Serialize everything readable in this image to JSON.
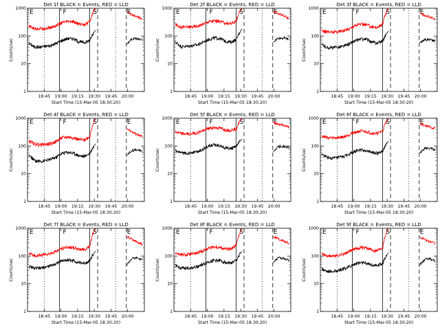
{
  "chart_data": [
    {
      "type": "line",
      "title": "Det 1f BLACK = Events, RED = LLD",
      "xlabel": "Start Time (15-Mar-05 18:30:20)",
      "ylabel": "Counts/sec",
      "yscale": "log",
      "ylim": [
        1,
        1000
      ],
      "ytick_labels": [
        "1",
        "10",
        "100",
        "1000"
      ],
      "xtick_labels": [
        "18:45",
        "19:00",
        "19:15",
        "19:30",
        "19:45",
        "20:00"
      ],
      "markers": [
        "E",
        "F",
        "S",
        "E"
      ],
      "series": [
        {
          "color": "#000000",
          "base": [
            55,
            40,
            40,
            43,
            45,
            55,
            70,
            82,
            80,
            62,
            58,
            70,
            160
          ]
        },
        {
          "color": "#ff0000",
          "base": [
            220,
            185,
            185,
            190,
            200,
            240,
            300,
            330,
            320,
            270,
            260,
            330,
            1000
          ]
        }
      ],
      "after": {
        "black": [
          50,
          80,
          80,
          70
        ],
        "red": [
          700,
          600,
          500,
          400
        ]
      }
    },
    {
      "type": "line",
      "title": "Det 2f BLACK = Events, RED = LLD",
      "xlabel": "Start Time (15-Mar-05 18:30:20)",
      "ylabel": "Counts/sec",
      "yscale": "log",
      "ylim": [
        1,
        1000
      ],
      "ytick_labels": [
        "1",
        "10",
        "100",
        "1000"
      ],
      "xtick_labels": [
        "18:45",
        "19:00",
        "19:15",
        "19:30",
        "19:45",
        "20:00"
      ],
      "markers": [
        "E",
        "F",
        "S",
        "E"
      ],
      "series": [
        {
          "color": "#000000",
          "base": [
            60,
            42,
            42,
            45,
            48,
            60,
            75,
            85,
            82,
            65,
            60,
            75,
            180
          ]
        },
        {
          "color": "#ff0000",
          "base": [
            260,
            210,
            210,
            215,
            225,
            270,
            330,
            350,
            340,
            290,
            280,
            350,
            1000
          ]
        }
      ],
      "after": {
        "black": [
          60,
          85,
          85,
          75
        ],
        "red": [
          750,
          650,
          550,
          430
        ]
      }
    },
    {
      "type": "line",
      "title": "Det 3f BLACK = Events, RED = LLD",
      "xlabel": "Start Time (15-Mar-05 18:30:20)",
      "ylabel": "Counts/sec",
      "yscale": "log",
      "ylim": [
        1,
        1000
      ],
      "ytick_labels": [
        "1",
        "10",
        "100",
        "1000"
      ],
      "xtick_labels": [
        "18:45",
        "19:00",
        "19:15",
        "19:30",
        "19:45",
        "20:00"
      ],
      "markers": [
        "E",
        "F",
        "S",
        "E"
      ],
      "series": [
        {
          "color": "#000000",
          "base": [
            48,
            38,
            38,
            40,
            43,
            52,
            66,
            78,
            76,
            60,
            55,
            68,
            150
          ]
        },
        {
          "color": "#ff0000",
          "base": [
            160,
            140,
            140,
            145,
            155,
            185,
            240,
            270,
            260,
            215,
            205,
            270,
            1000
          ]
        }
      ],
      "after": {
        "black": [
          55,
          75,
          75,
          65
        ],
        "red": [
          650,
          560,
          480,
          380
        ]
      }
    },
    {
      "type": "line",
      "title": "Det 4f BLACK = Events, RED = LLD",
      "xlabel": "Start Time (15-Mar-05 18:30:20)",
      "ylabel": "Counts/sec",
      "yscale": "log",
      "ylim": [
        1,
        1000
      ],
      "ytick_labels": [
        "1",
        "10",
        "100",
        "1000"
      ],
      "xtick_labels": [
        "18:45",
        "19:00",
        "19:15",
        "19:30",
        "19:45",
        "20:00"
      ],
      "markers": [
        "E",
        "F",
        "S",
        "E"
      ],
      "series": [
        {
          "color": "#000000",
          "base": [
            45,
            30,
            28,
            30,
            33,
            40,
            55,
            60,
            55,
            45,
            42,
            55,
            120
          ]
        },
        {
          "color": "#ff0000",
          "base": [
            150,
            120,
            110,
            115,
            120,
            150,
            200,
            210,
            200,
            170,
            165,
            220,
            1000
          ]
        }
      ],
      "after": {
        "black": [
          45,
          70,
          75,
          60
        ],
        "red": [
          400,
          320,
          260,
          220
        ]
      }
    },
    {
      "type": "line",
      "title": "Det 5f BLACK = Events, RED = LLD",
      "xlabel": "Start Time (15-Mar-05 18:30:20)",
      "ylabel": "Counts/sec",
      "yscale": "log",
      "ylim": [
        1,
        1000
      ],
      "ytick_labels": [
        "1",
        "10",
        "100",
        "1000"
      ],
      "xtick_labels": [
        "18:45",
        "19:00",
        "19:15",
        "19:30",
        "19:45",
        "20:00"
      ],
      "markers": [
        "E",
        "F",
        "S",
        "E"
      ],
      "series": [
        {
          "color": "#000000",
          "base": [
            65,
            55,
            55,
            58,
            62,
            78,
            100,
            110,
            105,
            85,
            80,
            95,
            180
          ]
        },
        {
          "color": "#ff0000",
          "base": [
            330,
            280,
            270,
            280,
            300,
            360,
            430,
            460,
            440,
            380,
            370,
            440,
            1000
          ]
        }
      ],
      "after": {
        "black": [
          60,
          95,
          100,
          85
        ],
        "red": [
          700,
          620,
          550,
          480
        ]
      }
    },
    {
      "type": "line",
      "title": "Det 6f BLACK = Events, RED = LLD",
      "xlabel": "Start Time (15-Mar-05 18:30:20)",
      "ylabel": "Counts/sec",
      "yscale": "log",
      "ylim": [
        1,
        1000
      ],
      "ytick_labels": [
        "1",
        "10",
        "100",
        "1000"
      ],
      "xtick_labels": [
        "18:45",
        "19:00",
        "19:15",
        "19:30",
        "19:45",
        "20:00"
      ],
      "markers": [
        "E",
        "F",
        "S",
        "E"
      ],
      "series": [
        {
          "color": "#000000",
          "base": [
            50,
            38,
            36,
            38,
            42,
            50,
            65,
            72,
            68,
            58,
            55,
            68,
            150
          ]
        },
        {
          "color": "#ff0000",
          "base": [
            230,
            200,
            195,
            200,
            215,
            260,
            320,
            340,
            330,
            290,
            280,
            350,
            1000
          ]
        }
      ],
      "after": {
        "black": [
          55,
          80,
          85,
          70
        ],
        "red": [
          650,
          560,
          480,
          420
        ]
      }
    },
    {
      "type": "line",
      "title": "Det 7f BLACK = Events, RED = LLD",
      "xlabel": "Start Time (15-Mar-05 18:30:20)",
      "ylabel": "Counts/sec",
      "yscale": "log",
      "ylim": [
        1,
        1000
      ],
      "ytick_labels": [
        "1",
        "10",
        "100",
        "1000"
      ],
      "xtick_labels": [
        "18:45",
        "19:00",
        "19:15",
        "19:30",
        "19:45",
        "20:00"
      ],
      "markers": [
        "E",
        "F",
        "S",
        "E"
      ],
      "series": [
        {
          "color": "#000000",
          "base": [
            42,
            36,
            36,
            40,
            45,
            55,
            68,
            72,
            68,
            58,
            55,
            68,
            150
          ]
        },
        {
          "color": "#ff0000",
          "base": [
            120,
            105,
            105,
            115,
            125,
            150,
            190,
            210,
            200,
            175,
            170,
            230,
            1000
          ]
        }
      ],
      "after": {
        "black": [
          45,
          80,
          85,
          70
        ],
        "red": [
          500,
          400,
          320,
          260
        ]
      }
    },
    {
      "type": "line",
      "title": "Det 8f BLACK = Events, RED = LLD",
      "xlabel": "Start Time (15-Mar-05 18:30:20)",
      "ylabel": "Counts/sec",
      "yscale": "log",
      "ylim": [
        1,
        1000
      ],
      "ytick_labels": [
        "1",
        "10",
        "100",
        "1000"
      ],
      "xtick_labels": [
        "18:45",
        "19:00",
        "19:15",
        "19:30",
        "19:45",
        "20:00"
      ],
      "markers": [
        "E",
        "F",
        "S",
        "E"
      ],
      "series": [
        {
          "color": "#000000",
          "base": [
            45,
            36,
            36,
            38,
            42,
            50,
            62,
            70,
            68,
            58,
            55,
            68,
            150
          ]
        },
        {
          "color": "#ff0000",
          "base": [
            130,
            110,
            110,
            118,
            128,
            155,
            195,
            215,
            205,
            180,
            175,
            240,
            1000
          ]
        }
      ],
      "after": {
        "black": [
          55,
          85,
          85,
          70
        ],
        "red": [
          500,
          420,
          350,
          280
        ]
      }
    },
    {
      "type": "line",
      "title": "Det 9f BLACK = Events, RED = LLD",
      "xlabel": "Start Time (15-Mar-05 18:30:20)",
      "ylabel": "Counts/sec",
      "yscale": "log",
      "ylim": [
        1,
        1000
      ],
      "ytick_labels": [
        "1",
        "10",
        "100",
        "1000"
      ],
      "xtick_labels": [
        "18:45",
        "19:00",
        "19:15",
        "19:30",
        "19:45",
        "20:00"
      ],
      "markers": [
        "E",
        "F",
        "S",
        "E"
      ],
      "series": [
        {
          "color": "#000000",
          "base": [
            35,
            28,
            28,
            30,
            34,
            42,
            52,
            58,
            55,
            48,
            45,
            56,
            130
          ]
        },
        {
          "color": "#ff0000",
          "base": [
            120,
            100,
            100,
            108,
            118,
            145,
            180,
            200,
            190,
            165,
            160,
            215,
            1000
          ]
        }
      ],
      "after": {
        "black": [
          45,
          75,
          80,
          65
        ],
        "red": [
          480,
          400,
          330,
          270
        ]
      }
    }
  ]
}
